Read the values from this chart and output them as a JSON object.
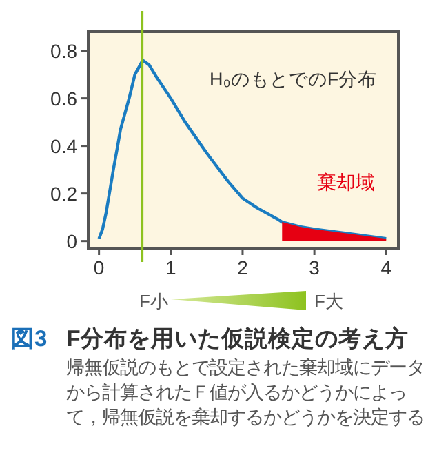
{
  "chart_data": {
    "type": "line",
    "title": "図3 F分布を用いた仮説検定の考え方",
    "x": [
      0,
      0.05,
      0.1,
      0.2,
      0.26,
      0.3,
      0.42,
      0.5,
      0.61,
      0.7,
      0.8,
      1,
      1.2,
      1.5,
      1.8,
      2,
      2.2,
      2.5,
      2.55,
      2.8,
      3,
      3.5,
      4
    ],
    "series": [
      {
        "color": "#1a7cc1",
        "values": [
          0.01,
          0.05,
          0.12,
          0.3,
          0.4,
          0.47,
          0.6,
          0.7,
          0.76,
          0.74,
          0.69,
          0.6,
          0.5,
          0.37,
          0.25,
          0.18,
          0.14,
          0.09,
          0.08,
          0.06,
          0.05,
          0.03,
          0.01
        ]
      },
      {
        "type": "area",
        "name": "棄却域",
        "color": "#e60012",
        "x": [
          2.55,
          2.8,
          3,
          3.5,
          4
        ],
        "values": [
          0.08,
          0.06,
          0.05,
          0.03,
          0.01
        ]
      }
    ],
    "xlim": [
      -0.15,
      4.17
    ],
    "ylim": [
      -0.03,
      0.88
    ],
    "xticks": [
      0,
      1,
      2,
      3,
      4
    ],
    "yticks": [
      0,
      0.2,
      0.4,
      0.6,
      0.8
    ],
    "grid": false,
    "ref_lines": [
      {
        "axis": "x",
        "value": 0.6,
        "color": "#8dc21f"
      }
    ],
    "annotations": [
      "H₀のもとでのF分布",
      "F小",
      "F大",
      "帰無仮説のもとで設定された棄却域にデータから計算されたＦ値が入るかどうかによって，帰無仮説を棄却するかどうかを決定する"
    ]
  }
}
